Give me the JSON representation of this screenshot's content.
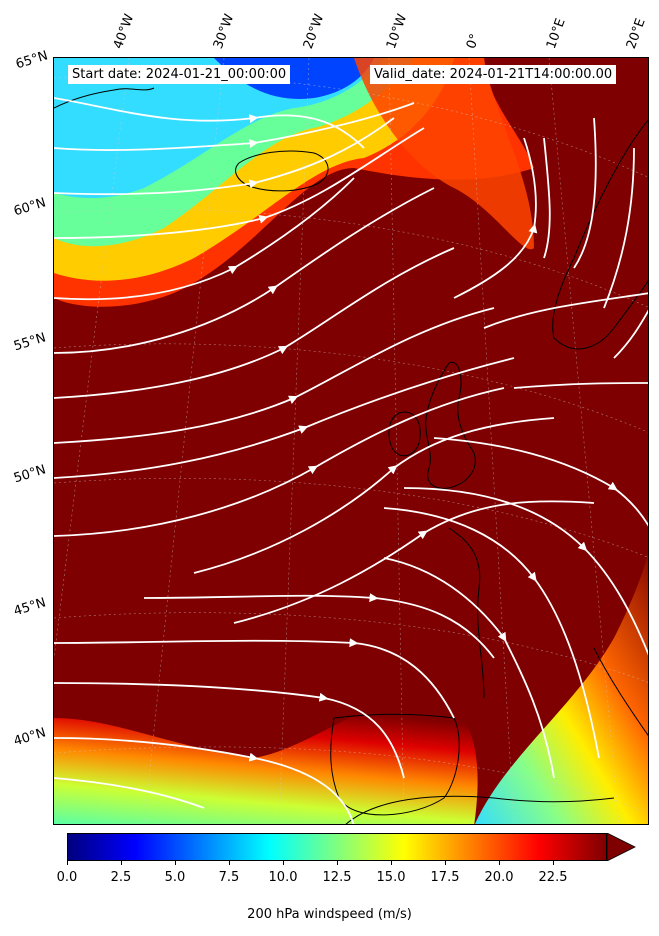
{
  "map": {
    "start_label": "Start date: 2024-01-21_00:00:00",
    "valid_label": "Valid_date: 2024-01-21T14:00:00.00",
    "longitude_labels": [
      "40°W",
      "30°W",
      "20°W",
      "10°W",
      "0°",
      "10°E",
      "20°E"
    ],
    "latitude_labels": [
      "65°N",
      "60°N",
      "55°N",
      "50°N",
      "45°N",
      "40°N"
    ],
    "field": "200 hPa windspeed",
    "streamline_color": "#ffffff",
    "coastline_color": "#000000"
  },
  "colorbar": {
    "label": "200 hPa windspeed (m/s)",
    "ticks": [
      "0.0",
      "2.5",
      "5.0",
      "7.5",
      "10.0",
      "12.5",
      "15.0",
      "17.5",
      "20.0",
      "22.5"
    ],
    "range": [
      0,
      25
    ],
    "extend": "max",
    "colormap": [
      "#00007f",
      "#0000ff",
      "#007fff",
      "#00ffff",
      "#7fff7f",
      "#ffff00",
      "#ff7f00",
      "#ff0000",
      "#7f0000"
    ]
  }
}
